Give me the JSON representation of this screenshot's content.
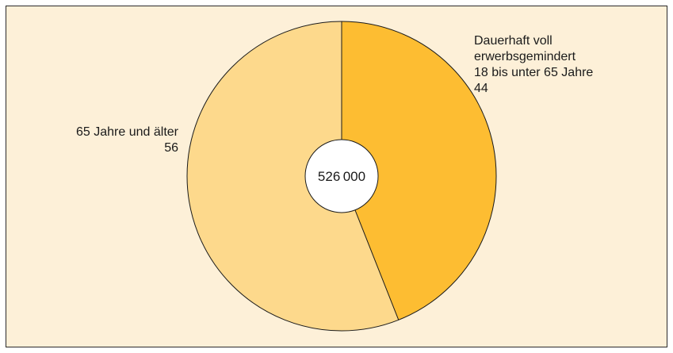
{
  "chart_data": {
    "type": "pie",
    "center_label": "526000",
    "slices": [
      {
        "value": 44,
        "label_lines": [
          "Dauerhaft voll",
          "erwerbsgemindert",
          "18 bis unter 65 Jahre"
        ],
        "value_label": "44",
        "color": "#fdbd32"
      },
      {
        "value": 56,
        "label_lines": [
          "65 Jahre und älter"
        ],
        "value_label": "56",
        "color": "#fdd98c"
      }
    ],
    "background_color": "#fdf0d8"
  }
}
